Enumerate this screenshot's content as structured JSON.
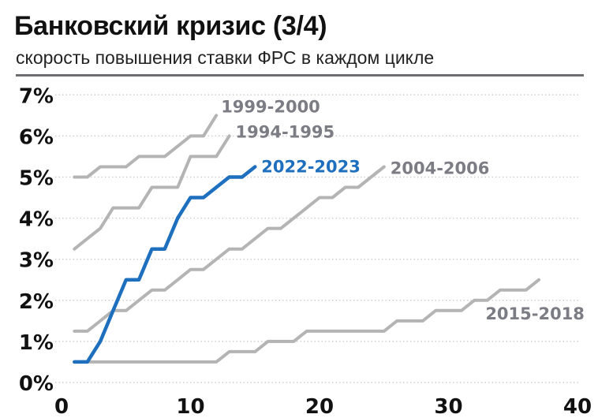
{
  "header": {
    "title": "Банковский кризис (3/4)",
    "subtitle": "скорость повышения ставки ФРС в каждом цикле"
  },
  "colors": {
    "highlight": "#1f6fbf",
    "other_series": "#b4b4b4",
    "other_label": "#7c7c84",
    "grid": "#cfcfcf",
    "rule": "#6e6e72"
  },
  "chart_data": {
    "type": "line",
    "title": "Банковский кризис (3/4)",
    "subtitle": "скорость повышения ставки ФРС в каждом цикле",
    "xlabel": "",
    "ylabel": "",
    "xlim": [
      0,
      40
    ],
    "ylim": [
      0,
      7
    ],
    "x_ticks": [
      "0",
      "10",
      "20",
      "30",
      "40"
    ],
    "y_ticks": [
      "0%",
      "1%",
      "2%",
      "3%",
      "4%",
      "5%",
      "6%",
      "7%"
    ],
    "grid": "horizontal dotted",
    "legend": "inline labels at line ends",
    "series": [
      {
        "name": "1999-2000",
        "highlight": false,
        "x": [
          1,
          2,
          3,
          4,
          5,
          6,
          7,
          8,
          9,
          10,
          11,
          12
        ],
        "values": [
          5.0,
          5.0,
          5.25,
          5.25,
          5.25,
          5.5,
          5.5,
          5.5,
          5.75,
          6.0,
          6.0,
          6.5
        ]
      },
      {
        "name": "1994-1995",
        "highlight": false,
        "x": [
          1,
          2,
          3,
          4,
          5,
          6,
          7,
          8,
          9,
          10,
          11,
          12,
          13
        ],
        "values": [
          3.25,
          3.5,
          3.75,
          4.25,
          4.25,
          4.25,
          4.75,
          4.75,
          4.75,
          5.5,
          5.5,
          5.5,
          6.0
        ]
      },
      {
        "name": "2022-2023",
        "highlight": true,
        "x": [
          1,
          2,
          3,
          4,
          5,
          6,
          7,
          8,
          9,
          10,
          11,
          12,
          13,
          14,
          15
        ],
        "values": [
          0.5,
          0.5,
          1.0,
          1.75,
          2.5,
          2.5,
          3.25,
          3.25,
          4.0,
          4.5,
          4.5,
          4.75,
          5.0,
          5.0,
          5.25
        ]
      },
      {
        "name": "2004-2006",
        "highlight": false,
        "x": [
          1,
          2,
          3,
          4,
          5,
          6,
          7,
          8,
          9,
          10,
          11,
          12,
          13,
          14,
          15,
          16,
          17,
          18,
          19,
          20,
          21,
          22,
          23,
          24,
          25
        ],
        "values": [
          1.25,
          1.25,
          1.5,
          1.75,
          1.75,
          2.0,
          2.25,
          2.25,
          2.5,
          2.75,
          2.75,
          3.0,
          3.25,
          3.25,
          3.5,
          3.75,
          3.75,
          4.0,
          4.25,
          4.5,
          4.5,
          4.75,
          4.75,
          5.0,
          5.25
        ]
      },
      {
        "name": "2015-2018",
        "highlight": false,
        "x": [
          1,
          2,
          3,
          4,
          5,
          6,
          7,
          8,
          9,
          10,
          11,
          12,
          13,
          14,
          15,
          16,
          17,
          18,
          19,
          20,
          21,
          22,
          23,
          24,
          25,
          26,
          27,
          28,
          29,
          30,
          31,
          32,
          33,
          34,
          35,
          36,
          37
        ],
        "values": [
          0.5,
          0.5,
          0.5,
          0.5,
          0.5,
          0.5,
          0.5,
          0.5,
          0.5,
          0.5,
          0.5,
          0.5,
          0.75,
          0.75,
          0.75,
          1.0,
          1.0,
          1.0,
          1.25,
          1.25,
          1.25,
          1.25,
          1.25,
          1.25,
          1.25,
          1.5,
          1.5,
          1.5,
          1.75,
          1.75,
          1.75,
          2.0,
          2.0,
          2.25,
          2.25,
          2.25,
          2.5
        ]
      }
    ]
  }
}
